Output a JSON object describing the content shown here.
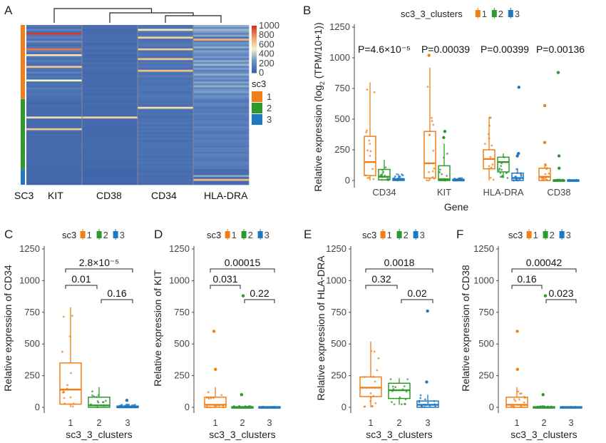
{
  "colors": {
    "c1": "#F07F18",
    "c2": "#2E9A2E",
    "c3": "#1F78C0",
    "hm_low": "#3D62A8",
    "hm_mid1": "#6F94C8",
    "hm_mid2": "#F5F2C8",
    "hm_high1": "#F4A266",
    "hm_high2": "#D73027"
  },
  "panel_letters": [
    "A",
    "B",
    "C",
    "D",
    "E",
    "F"
  ],
  "chart_data": [
    {
      "panel": "A",
      "type": "heatmap",
      "columns": [
        "KIT",
        "CD38",
        "CD34",
        "HLA-DRA"
      ],
      "row_annotation_label": "SC3",
      "colorbar": {
        "ticks": [
          "1000",
          "800",
          "600",
          "400",
          "200",
          "0"
        ],
        "range": [
          0,
          1000
        ]
      },
      "legend_title": "sc3",
      "legend_entries": [
        "1",
        "2",
        "3"
      ],
      "cluster_sizes": [
        38,
        36,
        8
      ],
      "matrix": [
        [
          120,
          60,
          80,
          320
        ],
        [
          40,
          70,
          90,
          210
        ],
        [
          180,
          30,
          540,
          340
        ],
        [
          60,
          50,
          110,
          280
        ],
        [
          980,
          40,
          70,
          160
        ],
        [
          90,
          60,
          100,
          300
        ],
        [
          150,
          50,
          610,
          90
        ],
        [
          60,
          40,
          80,
          720
        ],
        [
          220,
          60,
          70,
          150
        ],
        [
          80,
          30,
          90,
          250
        ],
        [
          60,
          40,
          120,
          190
        ],
        [
          100,
          70,
          60,
          310
        ],
        [
          850,
          60,
          620,
          140
        ],
        [
          130,
          40,
          80,
          280
        ],
        [
          70,
          60,
          100,
          230
        ],
        [
          560,
          30,
          90,
          180
        ],
        [
          90,
          40,
          70,
          260
        ],
        [
          60,
          50,
          650,
          140
        ],
        [
          120,
          30,
          80,
          300
        ],
        [
          80,
          70,
          110,
          210
        ],
        [
          40,
          40,
          80,
          340
        ],
        [
          640,
          50,
          100,
          160
        ],
        [
          90,
          60,
          70,
          270
        ],
        [
          70,
          40,
          660,
          150
        ],
        [
          150,
          30,
          90,
          210
        ],
        [
          60,
          50,
          80,
          310
        ],
        [
          110,
          40,
          120,
          180
        ],
        [
          80,
          60,
          70,
          250
        ],
        [
          500,
          30,
          90,
          140
        ],
        [
          70,
          50,
          80,
          290
        ],
        [
          90,
          40,
          70,
          200
        ],
        [
          60,
          30,
          100,
          310
        ],
        [
          130,
          60,
          80,
          170
        ],
        [
          80,
          40,
          90,
          240
        ],
        [
          60,
          50,
          70,
          280
        ],
        [
          100,
          30,
          80,
          150
        ],
        [
          70,
          60,
          110,
          230
        ],
        [
          60,
          40,
          90,
          190
        ],
        [
          50,
          40,
          80,
          120
        ],
        [
          40,
          30,
          70,
          100
        ],
        [
          30,
          50,
          90,
          180
        ],
        [
          60,
          40,
          60,
          150
        ],
        [
          40,
          30,
          560,
          90
        ],
        [
          30,
          40,
          80,
          140
        ],
        [
          50,
          30,
          70,
          110
        ],
        [
          40,
          40,
          90,
          160
        ],
        [
          30,
          30,
          60,
          130
        ],
        [
          560,
          600,
          60,
          120
        ],
        [
          40,
          30,
          80,
          100
        ],
        [
          50,
          40,
          70,
          150
        ],
        [
          30,
          30,
          90,
          140
        ],
        [
          40,
          40,
          60,
          110
        ],
        [
          30,
          30,
          80,
          170
        ],
        [
          640,
          30,
          70,
          130
        ],
        [
          40,
          40,
          90,
          120
        ],
        [
          30,
          30,
          60,
          100
        ],
        [
          50,
          40,
          80,
          150
        ],
        [
          30,
          30,
          70,
          140
        ],
        [
          40,
          40,
          90,
          110
        ],
        [
          30,
          30,
          60,
          160
        ],
        [
          50,
          40,
          80,
          130
        ],
        [
          40,
          30,
          70,
          120
        ],
        [
          30,
          40,
          90,
          100
        ],
        [
          40,
          30,
          60,
          150
        ],
        [
          30,
          40,
          80,
          140
        ],
        [
          50,
          30,
          70,
          110
        ],
        [
          40,
          40,
          90,
          160
        ],
        [
          30,
          30,
          60,
          130
        ],
        [
          40,
          40,
          80,
          120
        ],
        [
          30,
          30,
          70,
          100
        ],
        [
          50,
          40,
          90,
          150
        ],
        [
          40,
          30,
          60,
          140
        ],
        [
          30,
          40,
          80,
          110
        ],
        [
          40,
          30,
          70,
          120
        ],
        [
          30,
          20,
          60,
          40
        ],
        [
          20,
          20,
          50,
          60
        ],
        [
          30,
          20,
          70,
          40
        ],
        [
          20,
          20,
          60,
          300
        ],
        [
          30,
          20,
          50,
          50
        ],
        [
          20,
          20,
          70,
          680
        ],
        [
          30,
          20,
          60,
          40
        ],
        [
          20,
          20,
          50,
          60
        ]
      ]
    },
    {
      "panel": "B",
      "type": "box",
      "legend_title": "sc3_3_clusters",
      "legend_entries": [
        "1",
        "2",
        "3"
      ],
      "xlabel": "Gene",
      "ylabel_prefix": "Relative expression (log",
      "ylabel_sub": "2",
      "ylabel_suffix": " (TPM/10+1))",
      "ylim": [
        0,
        1250
      ],
      "yticks": [
        "0",
        "250",
        "500",
        "750",
        "1000",
        "1250"
      ],
      "categories": [
        "CD34",
        "KIT",
        "HLA-DRA",
        "CD38"
      ],
      "pvalues": [
        "P=4.6×10⁻⁵",
        "P=0.00039",
        "P=0.00399",
        "P=0.00136"
      ],
      "boxes": [
        [
          {
            "q1": 40,
            "med": 150,
            "q3": 360,
            "lo": 0,
            "hi": 800,
            "out": []
          },
          {
            "q1": 5,
            "med": 30,
            "q3": 90,
            "lo": 0,
            "hi": 170,
            "out": []
          },
          {
            "q1": 0,
            "med": 5,
            "q3": 15,
            "lo": 0,
            "hi": 55,
            "out": []
          }
        ],
        [
          {
            "q1": 20,
            "med": 140,
            "q3": 400,
            "lo": 0,
            "hi": 920,
            "out": [
              1020
            ]
          },
          {
            "q1": 0,
            "med": 10,
            "q3": 120,
            "lo": 0,
            "hi": 300,
            "out": [
              400,
              350
            ]
          },
          {
            "q1": 0,
            "med": 0,
            "q3": 10,
            "lo": 0,
            "hi": 20,
            "out": []
          }
        ],
        [
          {
            "q1": 95,
            "med": 175,
            "q3": 250,
            "lo": 0,
            "hi": 520,
            "out": []
          },
          {
            "q1": 70,
            "med": 150,
            "q3": 190,
            "lo": 20,
            "hi": 220,
            "out": []
          },
          {
            "q1": 0,
            "med": 20,
            "q3": 60,
            "lo": 0,
            "hi": 100,
            "out": [
              760,
              220,
              200
            ]
          }
        ],
        [
          {
            "q1": 0,
            "med": 30,
            "q3": 100,
            "lo": 0,
            "hi": 140,
            "out": [
              610,
              310
            ]
          },
          {
            "q1": 0,
            "med": 0,
            "q3": 5,
            "lo": 0,
            "hi": 10,
            "out": [
              880,
              200,
              100
            ]
          },
          {
            "q1": 0,
            "med": 0,
            "q3": 5,
            "lo": 0,
            "hi": 5,
            "out": []
          }
        ]
      ]
    },
    {
      "panel": "C",
      "type": "box",
      "legend_title": "sc3",
      "legend_entries": [
        "1",
        "2",
        "3"
      ],
      "xlabel": "sc3_3_clusters",
      "ylabel": "Relative expression of CD34",
      "categories": [
        "1",
        "2",
        "3"
      ],
      "ylim": [
        0,
        1250
      ],
      "yticks": [
        "0",
        "250",
        "500",
        "750",
        "1000",
        "1250"
      ],
      "boxes": [
        {
          "q1": 25,
          "med": 140,
          "q3": 350,
          "lo": 0,
          "hi": 790,
          "out": []
        },
        {
          "q1": 0,
          "med": 15,
          "q3": 80,
          "lo": 0,
          "hi": 160,
          "out": []
        },
        {
          "q1": 0,
          "med": 0,
          "q3": 10,
          "lo": 0,
          "hi": 30,
          "out": [
            55
          ]
        }
      ],
      "comparisons": [
        {
          "from": 1,
          "to": 3,
          "label": "2.8×10⁻⁵"
        },
        {
          "from": 1,
          "to": 2,
          "label": "0.01"
        },
        {
          "from": 2,
          "to": 3,
          "label": "0.16"
        }
      ]
    },
    {
      "panel": "D",
      "type": "box",
      "legend_title": "sc3",
      "legend_entries": [
        "1",
        "2",
        "3"
      ],
      "xlabel": "sc3_3_clusters",
      "ylabel": "Relative expression of KIT",
      "categories": [
        "1",
        "2",
        "3"
      ],
      "ylim": [
        0,
        1250
      ],
      "yticks": [
        "0",
        "250",
        "500",
        "750",
        "1000",
        "1250"
      ],
      "boxes": [
        {
          "q1": 0,
          "med": 20,
          "q3": 80,
          "lo": 0,
          "hi": 160,
          "out": [
            600,
            300
          ]
        },
        {
          "q1": 0,
          "med": 0,
          "q3": 5,
          "lo": 0,
          "hi": 10,
          "out": [
            880,
            100
          ]
        },
        {
          "q1": 0,
          "med": 0,
          "q3": 5,
          "lo": 0,
          "hi": 5,
          "out": []
        }
      ],
      "comparisons": [
        {
          "from": 1,
          "to": 3,
          "label": "0.00015"
        },
        {
          "from": 1,
          "to": 2,
          "label": "0.031"
        },
        {
          "from": 2,
          "to": 3,
          "label": "0.22"
        }
      ]
    },
    {
      "panel": "E",
      "type": "box",
      "legend_title": "sc3",
      "legend_entries": [
        "1",
        "2",
        "3"
      ],
      "xlabel": "sc3_3_clusters",
      "ylabel": "Relative expression of HLA-DRA",
      "categories": [
        "1",
        "2",
        "3"
      ],
      "ylim": [
        0,
        1250
      ],
      "yticks": [
        "0",
        "250",
        "500",
        "750",
        "1000",
        "1250"
      ],
      "boxes": [
        {
          "q1": 85,
          "med": 155,
          "q3": 240,
          "lo": 0,
          "hi": 520,
          "out": []
        },
        {
          "q1": 70,
          "med": 135,
          "q3": 190,
          "lo": 20,
          "hi": 230,
          "out": []
        },
        {
          "q1": 0,
          "med": 20,
          "q3": 50,
          "lo": 0,
          "hi": 100,
          "out": [
            760,
            200
          ]
        }
      ],
      "comparisons": [
        {
          "from": 1,
          "to": 3,
          "label": "0.0018"
        },
        {
          "from": 1,
          "to": 2,
          "label": "0.32"
        },
        {
          "from": 2,
          "to": 3,
          "label": "0.02"
        }
      ]
    },
    {
      "panel": "F",
      "type": "box",
      "legend_title": "sc3",
      "legend_entries": [
        "1",
        "2",
        "3"
      ],
      "xlabel": "sc3_3_clusters",
      "ylabel": "Relative expression of CD38",
      "categories": [
        "1",
        "2",
        "3"
      ],
      "ylim": [
        0,
        1250
      ],
      "yticks": [
        "0",
        "250",
        "500",
        "750",
        "1000",
        "1250"
      ],
      "boxes": [
        {
          "q1": 0,
          "med": 20,
          "q3": 80,
          "lo": 0,
          "hi": 160,
          "out": [
            600,
            300
          ]
        },
        {
          "q1": 0,
          "med": 0,
          "q3": 5,
          "lo": 0,
          "hi": 10,
          "out": [
            880,
            100
          ]
        },
        {
          "q1": 0,
          "med": 0,
          "q3": 5,
          "lo": 0,
          "hi": 5,
          "out": []
        }
      ],
      "comparisons": [
        {
          "from": 1,
          "to": 3,
          "label": "0.00042"
        },
        {
          "from": 1,
          "to": 2,
          "label": "0.16"
        },
        {
          "from": 2,
          "to": 3,
          "label": "0.023"
        }
      ]
    }
  ]
}
